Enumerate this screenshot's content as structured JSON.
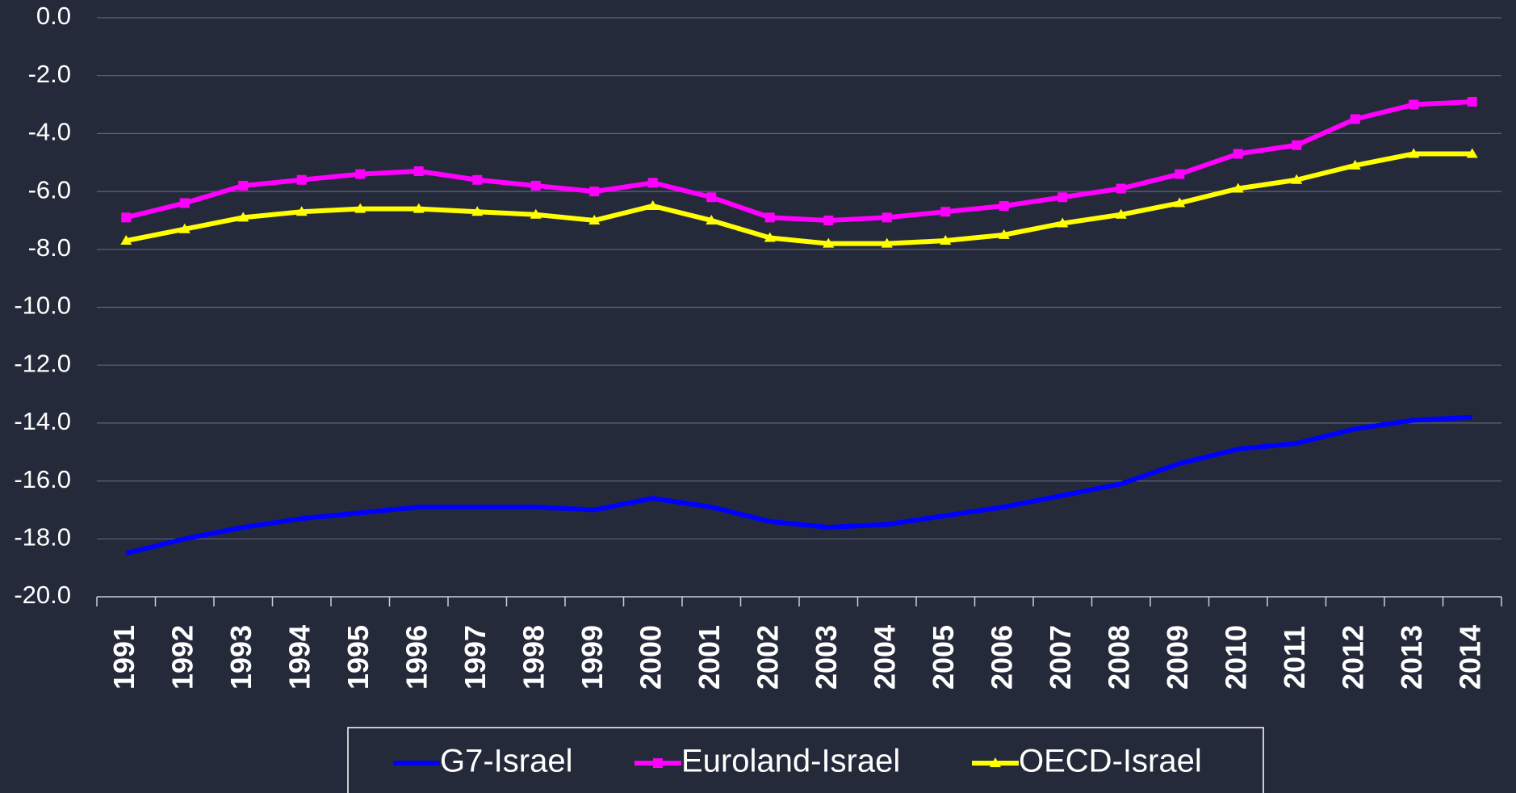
{
  "chart_data": {
    "type": "line",
    "categories": [
      "1991",
      "1992",
      "1993",
      "1994",
      "1995",
      "1996",
      "1997",
      "1998",
      "1999",
      "2000",
      "2001",
      "2002",
      "2003",
      "2004",
      "2005",
      "2006",
      "2007",
      "2008",
      "2009",
      "2010",
      "2011",
      "2012",
      "2013",
      "2014"
    ],
    "series": [
      {
        "name": "G7-Israel",
        "color": "#0000ff",
        "marker": "none",
        "values": [
          -18.5,
          -18.0,
          -17.6,
          -17.3,
          -17.1,
          -16.9,
          -16.9,
          -16.9,
          -17.0,
          -16.6,
          -16.9,
          -17.4,
          -17.6,
          -17.5,
          -17.2,
          -16.9,
          -16.5,
          -16.1,
          -15.4,
          -14.9,
          -14.7,
          -14.2,
          -13.9,
          -13.8
        ]
      },
      {
        "name": "Euroland-Israel",
        "color": "#ff00ff",
        "marker": "square",
        "values": [
          -6.9,
          -6.4,
          -5.8,
          -5.6,
          -5.4,
          -5.3,
          -5.6,
          -5.8,
          -6.0,
          -5.7,
          -6.2,
          -6.9,
          -7.0,
          -6.9,
          -6.7,
          -6.5,
          -6.2,
          -5.9,
          -5.4,
          -4.7,
          -4.4,
          -3.5,
          -3.0,
          -2.9
        ]
      },
      {
        "name": "OECD-Israel",
        "color": "#ffff00",
        "marker": "triangle",
        "values": [
          -7.7,
          -7.3,
          -6.9,
          -6.7,
          -6.6,
          -6.6,
          -6.7,
          -6.8,
          -7.0,
          -6.5,
          -7.0,
          -7.6,
          -7.8,
          -7.8,
          -7.7,
          -7.5,
          -7.1,
          -6.8,
          -6.4,
          -5.9,
          -5.6,
          -5.1,
          -4.7,
          -4.7
        ]
      }
    ],
    "ylim": [
      -20,
      0
    ],
    "yticks": [
      {
        "value": 0,
        "label": "0.0"
      },
      {
        "value": -2,
        "label": "-2.0"
      },
      {
        "value": -4,
        "label": "-4.0"
      },
      {
        "value": -6,
        "label": "-6.0"
      },
      {
        "value": -8,
        "label": "-8.0"
      },
      {
        "value": -10,
        "label": "-10.0"
      },
      {
        "value": -12,
        "label": "-12.0"
      },
      {
        "value": -14,
        "label": "-14.0"
      },
      {
        "value": -16,
        "label": "-16.0"
      },
      {
        "value": -18,
        "label": "-18.0"
      },
      {
        "value": -20,
        "label": "-20.0"
      }
    ],
    "grid": true,
    "legend": "bottom"
  }
}
